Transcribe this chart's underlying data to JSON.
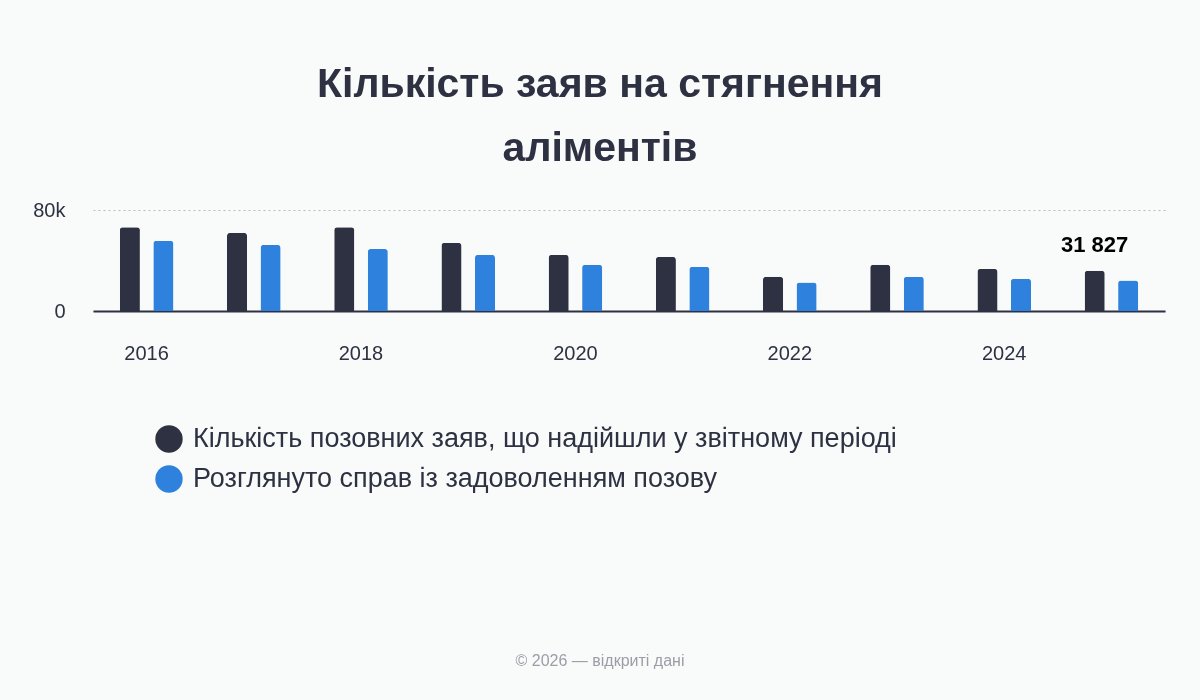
{
  "chart_data": {
    "type": "bar",
    "title": "Кількість заяв на стягнення аліментів",
    "categories": [
      "2016",
      null,
      "2018",
      null,
      "2020",
      null,
      "2022",
      null,
      "2024",
      null
    ],
    "series": [
      {
        "name": "Кількість позовних заяв, що надійшли у звітному періоді",
        "color": "#2e3142",
        "values": [
          66400,
          61800,
          66400,
          53900,
          44400,
          42800,
          27100,
          36600,
          33300,
          31827
        ],
        "value_labels": [
          null,
          null,
          null,
          null,
          null,
          null,
          null,
          null,
          null,
          "31 827"
        ]
      },
      {
        "name": "Розглянуто справ із задоволенням позову",
        "color": "#2e82dd",
        "values": [
          55600,
          52300,
          49100,
          44400,
          36600,
          35000,
          22500,
          27100,
          25500,
          24100
        ]
      }
    ],
    "ylim": [
      0,
      80000
    ],
    "yticks": [
      0,
      {
        "value": 80000,
        "label": "80k"
      }
    ],
    "grid": "y",
    "legend": "bottom",
    "annotations": [
      "© 2026 — відкриті дані"
    ]
  }
}
